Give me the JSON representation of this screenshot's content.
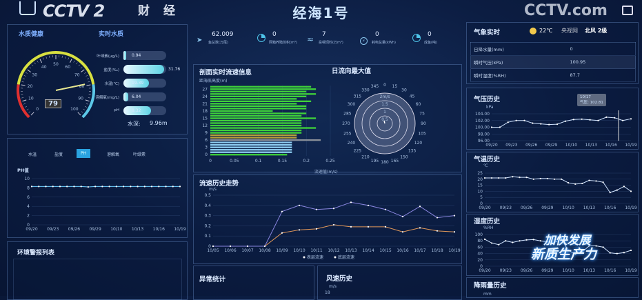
{
  "header": {
    "title": "经海1号"
  },
  "overlay": {
    "channel_logo": "CCTV 2",
    "channel_sub": "财经",
    "site_logo": "CCTV.com",
    "site_sub": "央视网",
    "weather_temp": "22℃",
    "weather_wind": "北风 2级",
    "banner_line1": "加快发展",
    "banner_line2": "新质生产力"
  },
  "water": {
    "title": "水质健康",
    "title2": "实时水质",
    "gauge_value": "79",
    "gauge_ticks": [
      "0",
      "10",
      "20",
      "30",
      "40",
      "50",
      "60",
      "70",
      "80",
      "90",
      "100"
    ],
    "params": [
      {
        "label": "叶绿素(μg/L)",
        "value": "0.94",
        "fill": 0.05
      },
      {
        "label": "盐度(‰)",
        "value": "31.76",
        "fill": 0.95
      },
      {
        "label": "水温(℃)",
        "value": "19.39",
        "fill": 0.6
      },
      {
        "label": "溶解氧(mg/L)",
        "value": "6.04",
        "fill": 0.12
      },
      {
        "label": "pH",
        "value": "8.32",
        "fill": 0.65
      }
    ],
    "depth_label": "水深:",
    "depth_value": "9.96m"
  },
  "history": {
    "tabs": [
      "水温",
      "盐度",
      "PH",
      "溶解氧",
      "叶绿素"
    ],
    "active_tab": 2,
    "chart_data": {
      "type": "line",
      "ylabel": "PH值",
      "ylim": [
        0,
        10
      ],
      "yticks": [
        "0",
        "2",
        "4",
        "6",
        "8",
        "10"
      ],
      "xticks": [
        "09/20",
        "09/23",
        "09/26",
        "09/29",
        "10/10",
        "10/13",
        "10/16",
        "10/19"
      ],
      "values": [
        8.3,
        8.3,
        8.3,
        8.3,
        8.3,
        8.3,
        8.3,
        8.3,
        8.2,
        8.3,
        8.3,
        8.3,
        8.3,
        8.3,
        8.3,
        8.3,
        8.3,
        8.3,
        8.3,
        8.3,
        8.3,
        8.3
      ],
      "color": "#6fd0ff"
    }
  },
  "alarm": {
    "title": "环境警报列表"
  },
  "stats": [
    {
      "value": "62.009",
      "label": "鱼总数(万尾)",
      "icon": "fish-icon"
    },
    {
      "value": "0",
      "label": "网箱养殖体积(m³)",
      "icon": "pie-icon"
    },
    {
      "value": "7",
      "label": "投喂饲料(万m³)",
      "icon": "wave-icon"
    },
    {
      "value": "0",
      "label": "耗电总量(kWh)",
      "icon": "power-icon"
    },
    {
      "value": "0",
      "label": "成鱼(吨)",
      "icon": "pie-icon"
    }
  ],
  "profile": {
    "title": "剖面实时流速信息",
    "chart_data": {
      "type": "bar",
      "orientation": "horizontal",
      "ylabel": "距海底高度(m)",
      "xlabel": "流速值(m/s)",
      "xlim": [
        0,
        0.25
      ],
      "xticks": [
        "0",
        "0.05",
        "0.1",
        "0.15",
        "0.2",
        "0.25"
      ],
      "yticks": [
        "0",
        "3",
        "6",
        "9",
        "12",
        "15",
        "18",
        "21",
        "24",
        "27"
      ],
      "depths": [
        0,
        1,
        2,
        3,
        4,
        5,
        6,
        7,
        8,
        9,
        10,
        11,
        12,
        13,
        14,
        15,
        16,
        17,
        18,
        19,
        20,
        21,
        22,
        23,
        24,
        25,
        26,
        27,
        28
      ],
      "values": [
        0.16,
        0.17,
        0.17,
        0.17,
        0.17,
        0.17,
        0.23,
        0.18,
        0.18,
        0.19,
        0.19,
        0.22,
        0.19,
        0.19,
        0.19,
        0.22,
        0.19,
        0.2,
        0.13,
        0.2,
        0.2,
        0.18,
        0.21,
        0.18,
        0.2,
        0.22,
        0.2,
        0.22,
        0.21
      ],
      "colors": {
        "green": "#3fd23a",
        "orange": "#b8a23a",
        "gray": "#8a8f99",
        "blue": "#8ccbf0"
      }
    }
  },
  "rose": {
    "title": "日流向最大值",
    "rings": [
      "0.5",
      "1",
      "1.5",
      "2m/s"
    ],
    "angles": [
      "0",
      "15",
      "30",
      "45",
      "60",
      "75",
      "90",
      "105",
      "120",
      "135",
      "150",
      "165",
      "180",
      "195",
      "210",
      "225",
      "240",
      "255",
      "270",
      "285",
      "300",
      "315",
      "330",
      "345"
    ]
  },
  "trend": {
    "title": "流速历史走势",
    "chart_data": {
      "type": "line",
      "ylabel": "m/s",
      "ylim": [
        0,
        0.5
      ],
      "yticks": [
        "0",
        "0.1",
        "0.2",
        "0.3",
        "0.4",
        "0.5"
      ],
      "x": [
        "10/05",
        "10/06",
        "10/07",
        "10/08",
        "10/09",
        "10/10",
        "10/11",
        "10/12",
        "10/13",
        "10/14",
        "10/15",
        "10/16",
        "10/17",
        "10/18",
        "10/19"
      ],
      "series": [
        {
          "name": "表层流速",
          "color": "#e59a5a",
          "values": [
            0,
            0,
            0,
            0,
            0.13,
            0.16,
            0.17,
            0.21,
            0.19,
            0.19,
            0.19,
            0.14,
            0.18,
            0.15,
            0.14
          ]
        },
        {
          "name": "底层流速",
          "color": "#8a86e0",
          "values": [
            0,
            0,
            0,
            0,
            0.34,
            0.4,
            0.36,
            0.37,
            0.43,
            0.4,
            0.36,
            0.29,
            0.39,
            0.28,
            0.3
          ]
        }
      ]
    }
  },
  "anomaly": {
    "title": "异常统计"
  },
  "wind": {
    "title": "风速历史",
    "unit": "m/s",
    "top_tick": "18"
  },
  "weather": {
    "title": "气象实时",
    "rows": [
      {
        "label": "日降水量(mm)",
        "value": "0"
      },
      {
        "label": "瞬时气压(kPa)",
        "value": "100.95"
      },
      {
        "label": "瞬时湿度(%RH)",
        "value": "87.7"
      }
    ]
  },
  "pressure": {
    "title": "气压历史",
    "chart_data": {
      "type": "line",
      "ylabel": "kPa",
      "ylim": [
        96,
        104
      ],
      "yticks": [
        "96.00",
        "98.00",
        "100.00",
        "102.00",
        "104.00"
      ],
      "xticks": [
        "09/20",
        "09/23",
        "09/26",
        "09/29",
        "10/10",
        "10/13",
        "10/16",
        "10/19"
      ],
      "values": [
        100,
        100,
        101.5,
        102,
        102,
        101.2,
        101,
        100.8,
        100.9,
        101.8,
        102.3,
        102.4,
        102.2,
        102,
        103,
        102.81,
        102,
        102.5
      ],
      "color": "#cfe3ff"
    },
    "tooltip_date": "10/17",
    "tooltip_text": "气压: 102.81"
  },
  "temp": {
    "title": "气温历史",
    "chart_data": {
      "type": "line",
      "ylabel": "℃",
      "ylim": [
        0,
        25
      ],
      "yticks": [
        "0",
        "5",
        "10",
        "15",
        "20",
        "25"
      ],
      "xticks": [
        "09/20",
        "09/23",
        "09/26",
        "09/29",
        "10/10",
        "10/13",
        "10/16",
        "10/19"
      ],
      "values": [
        21,
        21,
        21,
        21,
        22,
        21.5,
        21.5,
        20,
        20.5,
        20.5,
        20,
        20,
        17,
        16,
        16.5,
        19,
        18.5,
        17.5,
        9,
        11,
        14,
        10
      ],
      "color": "#cfe3ff"
    }
  },
  "humidity": {
    "title": "湿度历史",
    "chart_data": {
      "type": "line",
      "ylabel": "%RH",
      "ylim": [
        0,
        100
      ],
      "yticks": [
        "0",
        "20",
        "40",
        "60",
        "80",
        "100"
      ],
      "xticks": [
        "09/20",
        "09/23",
        "09/26",
        "09/29",
        "10/10",
        "10/13",
        "10/16",
        "10/19"
      ],
      "values": [
        85,
        73,
        68,
        80,
        75,
        80,
        83,
        84,
        80,
        77,
        75,
        85,
        50,
        38,
        45,
        64,
        64,
        60,
        42,
        40,
        43,
        50
      ],
      "color": "#cfe3ff"
    }
  },
  "rain": {
    "title": "降雨量历史",
    "unit": "mm"
  }
}
